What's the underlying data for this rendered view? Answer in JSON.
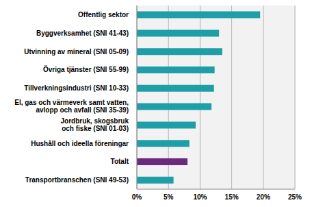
{
  "chart_data": {
    "type": "bar",
    "orientation": "horizontal",
    "categories": [
      "Offentlig sektor",
      "Byggverksamhet (SNI 41-43)",
      "Utvinning av mineral (SNI 05-09)",
      "Övriga tjänster (SNI 55-99)",
      "Tillverkningsindustri (SNI 10-33)",
      "El, gas och värmeverk samt vatten, avlopp och avfall (SNI 35-39)",
      "Jordbruk, skogsbruk och fiske (SNI 01-03)",
      "Hushåll och ideella föreningar",
      "Totalt",
      "Transportbranschen (SNI 49-53)"
    ],
    "values": [
      19.5,
      13.0,
      13.5,
      12.3,
      12.2,
      11.8,
      9.3,
      8.3,
      8.0,
      5.8
    ],
    "colors": [
      "#1e9fa8",
      "#1e9fa8",
      "#1e9fa8",
      "#1e9fa8",
      "#1e9fa8",
      "#1e9fa8",
      "#1e9fa8",
      "#1e9fa8",
      "#6a2a7e",
      "#1e9fa8"
    ],
    "xlim": [
      0,
      25
    ],
    "xticks": [
      {
        "value": 0,
        "label": "0%"
      },
      {
        "value": 5,
        "label": "5%"
      },
      {
        "value": 10,
        "label": "10%"
      },
      {
        "value": 15,
        "label": "15%"
      },
      {
        "value": 20,
        "label": "20%"
      },
      {
        "value": 25,
        "label": "25%"
      }
    ],
    "grid": true
  }
}
